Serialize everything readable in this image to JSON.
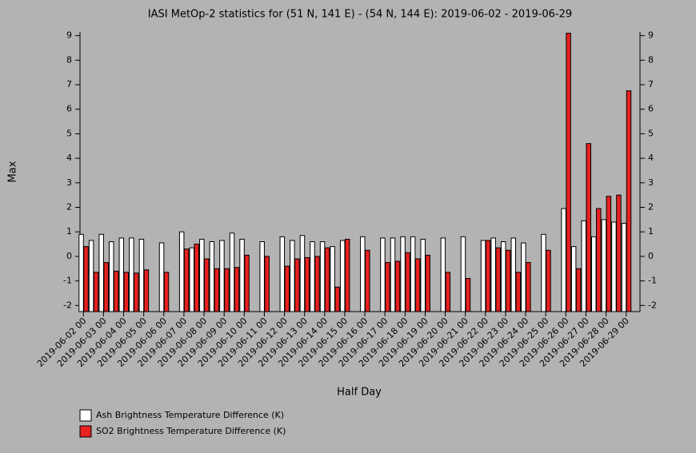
{
  "chart_data": {
    "type": "bar",
    "title": "IASI MetOp-2 statistics for (51 N, 141 E) - (54 N, 144 E): 2019-06-02 - 2019-06-29",
    "x_label": "Half Day",
    "y_label": "Max",
    "categories": [
      "2019-06-02 00",
      null,
      "2019-06-03 00",
      null,
      "2019-06-04 00",
      null,
      "2019-06-05 00",
      null,
      "2019-06-06 00",
      null,
      "2019-06-07 00",
      null,
      "2019-06-08 00",
      null,
      "2019-06-09 00",
      null,
      "2019-06-10 00",
      null,
      "2019-06-11 00",
      null,
      "2019-06-12 00",
      null,
      "2019-06-13 00",
      null,
      "2019-06-14 00",
      null,
      "2019-06-15 00",
      null,
      "2019-06-16 00",
      null,
      "2019-06-17 00",
      null,
      "2019-06-18 00",
      null,
      "2019-06-19 00",
      null,
      "2019-06-20 00",
      null,
      "2019-06-21 00",
      null,
      "2019-06-22 00",
      null,
      "2019-06-23 00",
      null,
      "2019-06-24 00",
      null,
      "2019-06-25 00",
      null,
      "2019-06-26 00",
      null,
      "2019-06-27 00",
      null,
      "2019-06-28 00",
      null,
      "2019-06-29 00"
    ],
    "series": [
      {
        "name": "Ash Brightness Temperature Difference (K)",
        "color": "#ffffff",
        "values": [
          0.9,
          0.65,
          0.9,
          0.6,
          0.75,
          0.75,
          0.7,
          null,
          0.55,
          null,
          1.0,
          0.35,
          0.7,
          0.6,
          0.65,
          0.95,
          0.7,
          null,
          0.6,
          null,
          0.8,
          0.65,
          0.85,
          0.6,
          0.6,
          0.4,
          0.65,
          null,
          0.8,
          null,
          0.75,
          0.75,
          0.8,
          0.8,
          0.7,
          null,
          0.75,
          null,
          0.8,
          null,
          0.65,
          0.75,
          0.6,
          0.75,
          0.55,
          null,
          0.9,
          null,
          1.95,
          0.4,
          1.45,
          0.8,
          1.5,
          1.4,
          1.35
        ]
      },
      {
        "name": "SO2 Brightness Temperature Difference (K)",
        "color": "#e82020",
        "values": [
          0.4,
          -0.65,
          -0.25,
          -0.6,
          -0.65,
          -0.68,
          -0.55,
          null,
          -0.65,
          null,
          0.3,
          0.5,
          -0.1,
          -0.5,
          -0.5,
          -0.45,
          0.05,
          null,
          0.0,
          null,
          -0.4,
          -0.1,
          -0.05,
          0.0,
          0.35,
          -1.25,
          0.7,
          null,
          0.25,
          null,
          -0.25,
          -0.2,
          0.15,
          -0.1,
          0.05,
          null,
          -0.65,
          null,
          -0.9,
          null,
          0.65,
          0.35,
          0.25,
          -0.65,
          -0.25,
          null,
          0.25,
          null,
          9.1,
          -0.5,
          4.6,
          1.95,
          2.45,
          2.5,
          6.75
        ]
      }
    ],
    "ylim": [
      -2.25,
      9.15
    ],
    "yticks": [
      -2,
      -1,
      0,
      1,
      2,
      3,
      4,
      5,
      6,
      7,
      8,
      9
    ]
  }
}
